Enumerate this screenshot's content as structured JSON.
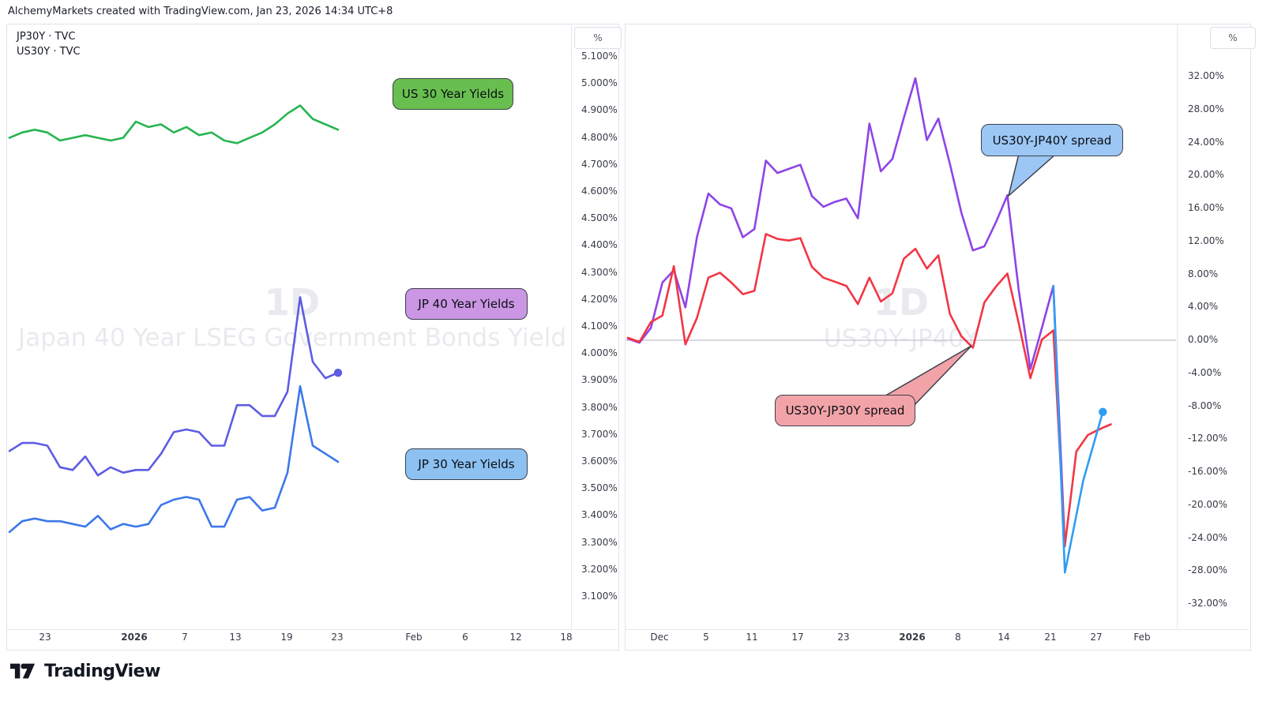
{
  "header": {
    "attribution": "AlchemyMarkets created with TradingView.com, Jan 23, 2026 14:34 UTC+8"
  },
  "left_chart": {
    "legend": {
      "line1": "JP30Y · TVC",
      "line2": "US30Y · TVC"
    },
    "axis_unit": "%",
    "watermark": {
      "timeframe": "1D",
      "title": "Japan 40 Year LSEG Government Bonds Yield"
    },
    "y_ticks": [
      "5.100%",
      "5.000%",
      "4.900%",
      "4.800%",
      "4.700%",
      "4.600%",
      "4.500%",
      "4.400%",
      "4.300%",
      "4.200%",
      "4.100%",
      "4.000%",
      "3.900%",
      "3.800%",
      "3.700%",
      "3.600%",
      "3.500%",
      "3.400%",
      "3.300%",
      "3.200%",
      "3.100%"
    ],
    "x_ticks": [
      {
        "label": "23",
        "x": 57
      },
      {
        "label": "2026",
        "x": 170,
        "bold": true
      },
      {
        "label": "7",
        "x": 234
      },
      {
        "label": "13",
        "x": 298
      },
      {
        "label": "19",
        "x": 363
      },
      {
        "label": "23",
        "x": 427
      },
      {
        "label": "Feb",
        "x": 524
      },
      {
        "label": "6",
        "x": 589
      },
      {
        "label": "12",
        "x": 653
      },
      {
        "label": "18",
        "x": 717
      }
    ],
    "badges": [
      {
        "label": "US 30 Year Yields",
        "fill": "#68bf4f"
      },
      {
        "label": "JP 40 Year Yields",
        "fill": "#cb96e4"
      },
      {
        "label": "JP 30 Year Yields",
        "fill": "#8cc1f2"
      }
    ]
  },
  "right_chart": {
    "axis_unit": "%",
    "watermark": {
      "timeframe": "1D",
      "title": "US30Y-JP40Y"
    },
    "y_ticks": [
      "32.00%",
      "28.00%",
      "24.00%",
      "20.00%",
      "16.00%",
      "12.00%",
      "8.00%",
      "4.00%",
      "0.00%",
      "-4.00%",
      "-8.00%",
      "-12.00%",
      "-16.00%",
      "-20.00%",
      "-24.00%",
      "-28.00%",
      "-32.00%"
    ],
    "x_ticks": [
      {
        "label": "Dec",
        "x": 835
      },
      {
        "label": "5",
        "x": 894
      },
      {
        "label": "11",
        "x": 952
      },
      {
        "label": "17",
        "x": 1010
      },
      {
        "label": "23",
        "x": 1068
      },
      {
        "label": "2026",
        "x": 1155,
        "bold": true
      },
      {
        "label": "8",
        "x": 1213
      },
      {
        "label": "14",
        "x": 1271
      },
      {
        "label": "21",
        "x": 1330
      },
      {
        "label": "27",
        "x": 1388
      },
      {
        "label": "Feb",
        "x": 1446
      }
    ],
    "callouts": [
      {
        "label": "US30Y-JP40Y spread",
        "fill": "#9cc7f5"
      },
      {
        "label": "US30Y-JP30Y spread",
        "fill": "#f2a3a8"
      }
    ]
  },
  "footer": {
    "brand": "TradingView"
  },
  "chart_data": [
    {
      "type": "line",
      "panel": "left",
      "timeframe": "1D",
      "title": "Japan 40 Year LSEG Government Bonds Yield",
      "ylabel": "%",
      "ylim": [
        3.1,
        5.1
      ],
      "ytick_step": 0.1,
      "grid": false,
      "x_axis_labels": [
        "23",
        "2026",
        "7",
        "13",
        "19",
        "23",
        "Feb",
        "6",
        "12",
        "18"
      ],
      "series": [
        {
          "name": "US 30 Year Yields",
          "color": "#26b551",
          "values": [
            4.8,
            4.82,
            4.83,
            4.82,
            4.79,
            4.8,
            4.81,
            4.8,
            4.79,
            4.8,
            4.86,
            4.84,
            4.85,
            4.82,
            4.84,
            4.81,
            4.82,
            4.79,
            4.78,
            4.8,
            4.82,
            4.85,
            4.89,
            4.92,
            4.87,
            4.85,
            4.83
          ]
        },
        {
          "name": "JP 40 Year Yields",
          "color": "#5d5ce4",
          "end_dot": true,
          "values": [
            3.64,
            3.67,
            3.67,
            3.66,
            3.58,
            3.57,
            3.62,
            3.55,
            3.58,
            3.56,
            3.57,
            3.57,
            3.63,
            3.71,
            3.72,
            3.71,
            3.66,
            3.66,
            3.81,
            3.81,
            3.77,
            3.77,
            3.86,
            4.21,
            3.97,
            3.91,
            3.93
          ]
        },
        {
          "name": "JP 30 Year Yields",
          "color": "#3c78ec",
          "values": [
            3.34,
            3.38,
            3.39,
            3.38,
            3.38,
            3.37,
            3.36,
            3.4,
            3.35,
            3.37,
            3.36,
            3.37,
            3.44,
            3.46,
            3.47,
            3.46,
            3.36,
            3.36,
            3.46,
            3.47,
            3.42,
            3.43,
            3.56,
            3.88,
            3.66,
            3.63,
            3.6
          ]
        }
      ]
    },
    {
      "type": "line",
      "panel": "right",
      "timeframe": "1D",
      "title": "US30Y-JP40Y",
      "ylabel": "%",
      "ylim": [
        -32,
        32
      ],
      "ytick_step": 4,
      "zero_line": true,
      "grid": false,
      "x_axis_labels": [
        "Dec",
        "5",
        "11",
        "17",
        "23",
        "2026",
        "8",
        "14",
        "21",
        "27",
        "Feb"
      ],
      "series": [
        {
          "name": "US30Y-JP40Y spread",
          "color": "#8e44e7",
          "values": [
            0.2,
            -0.3,
            1.5,
            7.0,
            8.5,
            4.0,
            12.5,
            17.8,
            16.5,
            16.0,
            12.5,
            13.5,
            21.8,
            20.3,
            20.8,
            21.3,
            17.5,
            16.2,
            16.8,
            17.2,
            14.8,
            26.3,
            20.5,
            22.0,
            27.0,
            31.8,
            24.3,
            26.9,
            21.4,
            15.5,
            10.9,
            11.4,
            14.3,
            17.6,
            6.0,
            -3.5,
            1.5,
            6.6,
            -25.0
          ]
        },
        {
          "name": "US30Y-JP30Y spread",
          "color": "#f23645",
          "values": [
            0.3,
            -0.2,
            2.2,
            3.0,
            9.0,
            -0.5,
            2.7,
            7.6,
            8.2,
            7.0,
            5.6,
            6.0,
            12.9,
            12.3,
            12.1,
            12.4,
            8.9,
            7.6,
            7.1,
            6.6,
            4.4,
            7.6,
            4.7,
            5.7,
            9.9,
            11.1,
            8.7,
            10.3,
            3.2,
            0.5,
            -0.9,
            4.6,
            6.5,
            8.1,
            2.0,
            -4.6,
            0.1,
            1.2,
            -24.9,
            -13.5,
            -11.5,
            -10.8,
            -10.2
          ]
        },
        {
          "name": "US30Y-JP40Y spread (latest leg)",
          "color": "#2f9df3",
          "end_dot": true,
          "points": [
            [
              37,
              6.6
            ],
            [
              38,
              -28.2
            ],
            [
              39.6,
              -17.0
            ],
            [
              41.3,
              -8.7
            ]
          ]
        }
      ]
    }
  ]
}
